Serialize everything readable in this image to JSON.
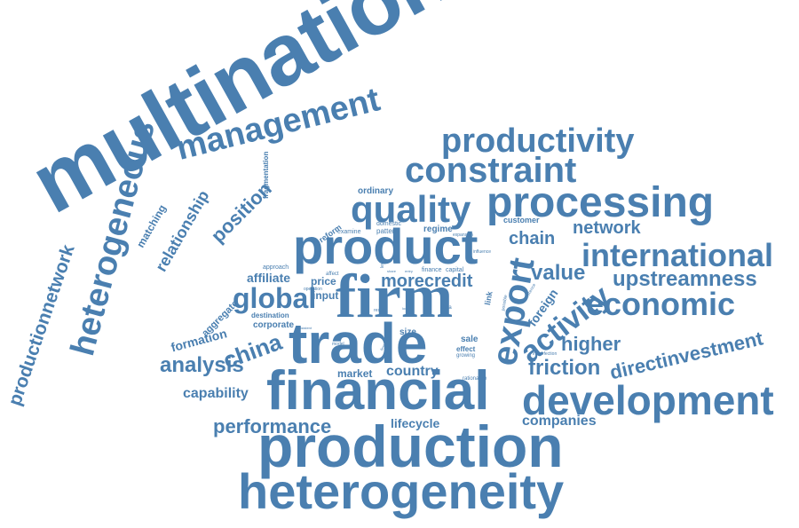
{
  "title": "Word cloud",
  "accent_color": "#4a7fb0",
  "words": {
    "multinational": "multinational",
    "heterogeneous": "heterogeneous",
    "productionnetwork": "productionnetwork",
    "management": "management",
    "productivity": "productivity",
    "constraint": "constraint",
    "processing": "processing",
    "quality": "quality",
    "product": "product",
    "international": "international",
    "firm": "firm",
    "trade": "trade",
    "financial": "financial",
    "development": "development",
    "production": "production",
    "heterogeneity": "heterogeneity",
    "export": "export",
    "activity": "activity",
    "economic": "economic",
    "upstreamness": "upstreamness",
    "directinvestment": "directinvestment",
    "friction": "friction",
    "higher": "higher",
    "value": "value",
    "chain": "chain",
    "network": "network",
    "global": "global",
    "morecredit": "morecredit",
    "china": "china",
    "analysis": "analysis",
    "capability": "capability",
    "performance": "performance",
    "lifecycle": "lifecycle",
    "companies": "companies",
    "country": "country",
    "market": "market",
    "relationship": "relationship",
    "position": "position",
    "matching": "matching",
    "fragmentation": "fragmentation",
    "affiliate": "affiliate",
    "aggregate": "aggregate",
    "formation": "formation",
    "corporate": "corporate",
    "destination": "destination",
    "price": "price",
    "input": "input",
    "ordinary": "ordinary",
    "reform": "reform",
    "examine": "examine",
    "domestic": "domestic",
    "pattern": "pattern",
    "regime": "regime",
    "customer": "customer",
    "approach": "approach",
    "affect": "affect",
    "operation": "operation",
    "finance": "finance",
    "capital": "capital",
    "influence": "influence",
    "expansion": "expansion",
    "foreign": "foreign",
    "size": "size",
    "sale": "sale",
    "effect": "effect",
    "growing": "growing",
    "rationalize": "rationalize",
    "imperfection": "imperfection",
    "model": "model",
    "consistent": "consistent",
    "result": "result",
    "sector": "sector",
    "entry": "entry",
    "share": "share",
    "level": "level",
    "data": "data",
    "link": "link",
    "difference": "difference",
    "possible": "possible",
    "local": "local",
    "firmlevel": "firmlevel"
  }
}
